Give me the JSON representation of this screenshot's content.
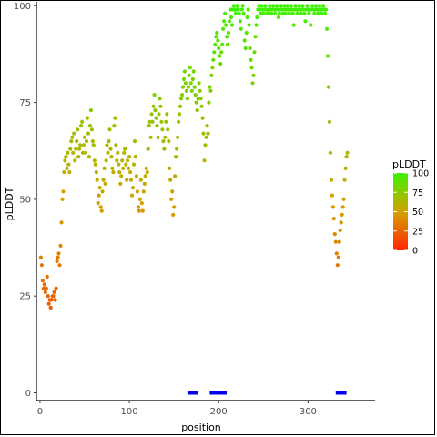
{
  "chart_data": {
    "type": "scatter",
    "xlabel": "position",
    "ylabel": "pLDDT",
    "xlim": [
      -4,
      375
    ],
    "ylim": [
      -2,
      101
    ],
    "x_ticks": [
      0,
      100,
      200,
      300
    ],
    "y_ticks": [
      0,
      25,
      50,
      75,
      100
    ],
    "grid": false,
    "legend": {
      "title": "pLDDT",
      "position": "right",
      "type": "colorbar",
      "ticks": [
        0,
        25,
        50,
        75,
        100
      ],
      "colors": {
        "low": "#ff2400",
        "mid": "#d4a200",
        "high": "#3cf300"
      }
    },
    "points": [
      [
        1,
        35
      ],
      [
        2,
        33
      ],
      [
        3,
        29
      ],
      [
        4,
        27
      ],
      [
        5,
        28
      ],
      [
        6,
        26
      ],
      [
        7,
        27
      ],
      [
        8,
        30
      ],
      [
        9,
        25
      ],
      [
        10,
        23
      ],
      [
        11,
        24
      ],
      [
        12,
        22
      ],
      [
        13,
        24
      ],
      [
        14,
        25
      ],
      [
        15,
        25
      ],
      [
        16,
        26
      ],
      [
        17,
        24
      ],
      [
        18,
        27
      ],
      [
        19,
        34
      ],
      [
        20,
        35
      ],
      [
        21,
        36
      ],
      [
        22,
        33
      ],
      [
        23,
        38
      ],
      [
        24,
        44
      ],
      [
        25,
        50
      ],
      [
        26,
        52
      ],
      [
        27,
        57
      ],
      [
        28,
        60
      ],
      [
        29,
        61
      ],
      [
        30,
        58
      ],
      [
        31,
        62
      ],
      [
        32,
        59
      ],
      [
        33,
        57
      ],
      [
        34,
        63
      ],
      [
        35,
        65
      ],
      [
        36,
        66
      ],
      [
        37,
        62
      ],
      [
        38,
        67
      ],
      [
        39,
        60
      ],
      [
        40,
        63
      ],
      [
        41,
        65
      ],
      [
        42,
        68
      ],
      [
        43,
        61
      ],
      [
        44,
        63
      ],
      [
        45,
        64
      ],
      [
        46,
        69
      ],
      [
        47,
        70
      ],
      [
        48,
        62
      ],
      [
        49,
        64
      ],
      [
        50,
        66
      ],
      [
        51,
        62
      ],
      [
        52,
        65
      ],
      [
        53,
        71
      ],
      [
        54,
        67
      ],
      [
        55,
        61
      ],
      [
        56,
        69
      ],
      [
        57,
        73
      ],
      [
        58,
        68
      ],
      [
        59,
        65
      ],
      [
        60,
        64
      ],
      [
        61,
        60
      ],
      [
        62,
        59
      ],
      [
        63,
        57
      ],
      [
        64,
        55
      ],
      [
        65,
        49
      ],
      [
        66,
        51
      ],
      [
        67,
        53
      ],
      [
        68,
        48
      ],
      [
        69,
        47
      ],
      [
        70,
        52
      ],
      [
        71,
        55
      ],
      [
        72,
        58
      ],
      [
        73,
        54
      ],
      [
        74,
        60
      ],
      [
        75,
        64
      ],
      [
        76,
        62
      ],
      [
        77,
        65
      ],
      [
        78,
        68
      ],
      [
        79,
        63
      ],
      [
        80,
        61
      ],
      [
        81,
        58
      ],
      [
        82,
        57
      ],
      [
        83,
        69
      ],
      [
        84,
        71
      ],
      [
        85,
        64
      ],
      [
        86,
        60
      ],
      [
        87,
        62
      ],
      [
        88,
        59
      ],
      [
        89,
        57
      ],
      [
        90,
        54
      ],
      [
        91,
        56
      ],
      [
        92,
        60
      ],
      [
        93,
        58
      ],
      [
        94,
        62
      ],
      [
        95,
        63
      ],
      [
        96,
        59
      ],
      [
        97,
        55
      ],
      [
        98,
        60
      ],
      [
        99,
        58
      ],
      [
        100,
        61
      ],
      [
        101,
        57
      ],
      [
        102,
        55
      ],
      [
        103,
        51
      ],
      [
        104,
        53
      ],
      [
        105,
        59
      ],
      [
        106,
        65
      ],
      [
        107,
        61
      ],
      [
        108,
        56
      ],
      [
        109,
        52
      ],
      [
        110,
        48
      ],
      [
        111,
        47
      ],
      [
        112,
        50
      ],
      [
        113,
        55
      ],
      [
        114,
        49
      ],
      [
        115,
        47
      ],
      [
        116,
        52
      ],
      [
        117,
        54
      ],
      [
        118,
        56
      ],
      [
        119,
        58
      ],
      [
        120,
        57
      ],
      [
        121,
        63
      ],
      [
        122,
        69
      ],
      [
        123,
        70
      ],
      [
        124,
        66
      ],
      [
        125,
        72
      ],
      [
        126,
        70
      ],
      [
        127,
        74
      ],
      [
        128,
        77
      ],
      [
        129,
        73
      ],
      [
        130,
        71
      ],
      [
        131,
        69
      ],
      [
        132,
        66
      ],
      [
        133,
        72
      ],
      [
        134,
        76
      ],
      [
        135,
        74
      ],
      [
        136,
        70
      ],
      [
        137,
        68
      ],
      [
        138,
        65
      ],
      [
        139,
        63
      ],
      [
        140,
        66
      ],
      [
        141,
        70
      ],
      [
        142,
        72
      ],
      [
        143,
        68
      ],
      [
        144,
        65
      ],
      [
        145,
        58
      ],
      [
        146,
        55
      ],
      [
        147,
        50
      ],
      [
        148,
        52
      ],
      [
        149,
        46
      ],
      [
        150,
        48
      ],
      [
        151,
        56
      ],
      [
        152,
        61
      ],
      [
        153,
        63
      ],
      [
        154,
        66
      ],
      [
        155,
        70
      ],
      [
        156,
        72
      ],
      [
        157,
        74
      ],
      [
        158,
        76
      ],
      [
        159,
        77
      ],
      [
        160,
        79
      ],
      [
        161,
        81
      ],
      [
        162,
        83
      ],
      [
        163,
        80
      ],
      [
        164,
        78
      ],
      [
        165,
        76
      ],
      [
        166,
        79
      ],
      [
        167,
        82
      ],
      [
        168,
        84
      ],
      [
        169,
        80
      ],
      [
        170,
        78
      ],
      [
        171,
        81
      ],
      [
        172,
        83
      ],
      [
        173,
        79
      ],
      [
        174,
        77
      ],
      [
        175,
        75
      ],
      [
        176,
        73
      ],
      [
        177,
        76
      ],
      [
        178,
        80
      ],
      [
        179,
        78
      ],
      [
        180,
        76
      ],
      [
        181,
        74
      ],
      [
        182,
        71
      ],
      [
        183,
        67
      ],
      [
        184,
        60
      ],
      [
        185,
        64
      ],
      [
        186,
        66
      ],
      [
        187,
        69
      ],
      [
        188,
        67
      ],
      [
        189,
        75
      ],
      [
        190,
        79
      ],
      [
        191,
        78
      ],
      [
        192,
        82
      ],
      [
        193,
        84
      ],
      [
        194,
        86
      ],
      [
        195,
        88
      ],
      [
        196,
        90
      ],
      [
        197,
        92
      ],
      [
        198,
        93
      ],
      [
        199,
        91
      ],
      [
        200,
        89
      ],
      [
        201,
        87
      ],
      [
        202,
        85
      ],
      [
        203,
        88
      ],
      [
        204,
        90
      ],
      [
        205,
        94
      ],
      [
        206,
        96
      ],
      [
        207,
        98
      ],
      [
        208,
        95
      ],
      [
        209,
        92
      ],
      [
        210,
        90
      ],
      [
        211,
        93
      ],
      [
        212,
        96
      ],
      [
        213,
        99
      ],
      [
        214,
        97
      ],
      [
        215,
        95
      ],
      [
        216,
        99
      ],
      [
        217,
        100
      ],
      [
        218,
        99
      ],
      [
        219,
        98
      ],
      [
        220,
        99
      ],
      [
        221,
        100
      ],
      [
        222,
        99
      ],
      [
        223,
        98
      ],
      [
        224,
        96
      ],
      [
        225,
        94
      ],
      [
        226,
        99
      ],
      [
        227,
        100
      ],
      [
        228,
        98
      ],
      [
        229,
        91
      ],
      [
        230,
        89
      ],
      [
        231,
        93
      ],
      [
        232,
        97
      ],
      [
        233,
        99
      ],
      [
        234,
        95
      ],
      [
        235,
        89
      ],
      [
        236,
        86
      ],
      [
        237,
        84
      ],
      [
        238,
        80
      ],
      [
        239,
        82
      ],
      [
        240,
        88
      ],
      [
        241,
        92
      ],
      [
        242,
        95
      ],
      [
        243,
        97
      ],
      [
        244,
        99
      ],
      [
        245,
        100
      ],
      [
        246,
        99
      ],
      [
        247,
        98
      ],
      [
        248,
        100
      ],
      [
        249,
        99
      ],
      [
        250,
        98
      ],
      [
        251,
        99
      ],
      [
        252,
        100
      ],
      [
        253,
        99
      ],
      [
        254,
        98
      ],
      [
        255,
        99
      ],
      [
        256,
        98
      ],
      [
        257,
        100
      ],
      [
        258,
        99
      ],
      [
        259,
        98
      ],
      [
        260,
        99
      ],
      [
        261,
        100
      ],
      [
        262,
        99
      ],
      [
        263,
        98
      ],
      [
        264,
        99
      ],
      [
        265,
        100
      ],
      [
        266,
        99
      ],
      [
        267,
        97
      ],
      [
        268,
        98
      ],
      [
        269,
        99
      ],
      [
        270,
        100
      ],
      [
        271,
        99
      ],
      [
        272,
        98
      ],
      [
        273,
        99
      ],
      [
        274,
        100
      ],
      [
        275,
        98
      ],
      [
        276,
        99
      ],
      [
        277,
        100
      ],
      [
        278,
        99
      ],
      [
        279,
        98
      ],
      [
        280,
        99
      ],
      [
        281,
        100
      ],
      [
        282,
        99
      ],
      [
        283,
        98
      ],
      [
        284,
        95
      ],
      [
        285,
        99
      ],
      [
        286,
        100
      ],
      [
        287,
        99
      ],
      [
        288,
        98
      ],
      [
        289,
        99
      ],
      [
        290,
        100
      ],
      [
        291,
        99
      ],
      [
        292,
        98
      ],
      [
        293,
        99
      ],
      [
        294,
        100
      ],
      [
        295,
        99
      ],
      [
        296,
        98
      ],
      [
        297,
        96
      ],
      [
        298,
        99
      ],
      [
        299,
        100
      ],
      [
        300,
        99
      ],
      [
        301,
        98
      ],
      [
        302,
        99
      ],
      [
        303,
        95
      ],
      [
        304,
        99
      ],
      [
        305,
        100
      ],
      [
        306,
        99
      ],
      [
        307,
        98
      ],
      [
        308,
        99
      ],
      [
        309,
        100
      ],
      [
        310,
        99
      ],
      [
        311,
        98
      ],
      [
        312,
        99
      ],
      [
        313,
        100
      ],
      [
        314,
        99
      ],
      [
        315,
        98
      ],
      [
        316,
        99
      ],
      [
        317,
        100
      ],
      [
        318,
        99
      ],
      [
        319,
        98
      ],
      [
        320,
        99
      ],
      [
        321,
        94
      ],
      [
        322,
        87
      ],
      [
        323,
        79
      ],
      [
        324,
        70
      ],
      [
        325,
        62
      ],
      [
        326,
        55
      ],
      [
        327,
        51
      ],
      [
        328,
        48
      ],
      [
        329,
        45
      ],
      [
        330,
        41
      ],
      [
        331,
        39
      ],
      [
        332,
        36
      ],
      [
        333,
        33
      ],
      [
        334,
        35
      ],
      [
        335,
        39
      ],
      [
        336,
        42
      ],
      [
        337,
        44
      ],
      [
        338,
        46
      ],
      [
        339,
        48
      ],
      [
        340,
        50
      ],
      [
        341,
        55
      ],
      [
        342,
        58
      ],
      [
        343,
        61
      ],
      [
        344,
        62
      ]
    ],
    "bars_at_zero": [
      [
        165,
        177
      ],
      [
        190,
        209
      ],
      [
        331,
        343
      ]
    ],
    "bar_color": "#0000ee"
  }
}
